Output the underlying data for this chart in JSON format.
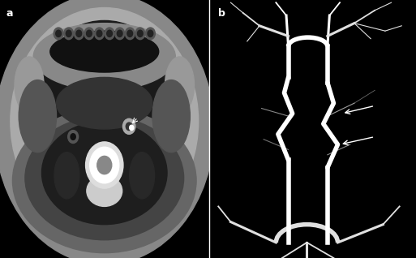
{
  "fig_width": 5.13,
  "fig_height": 3.18,
  "dpi": 100,
  "background_color": "#000000",
  "label_a": "a",
  "label_b": "b",
  "label_color": "#ffffff",
  "label_fontsize": 9,
  "arrow_color": "#ffffff"
}
